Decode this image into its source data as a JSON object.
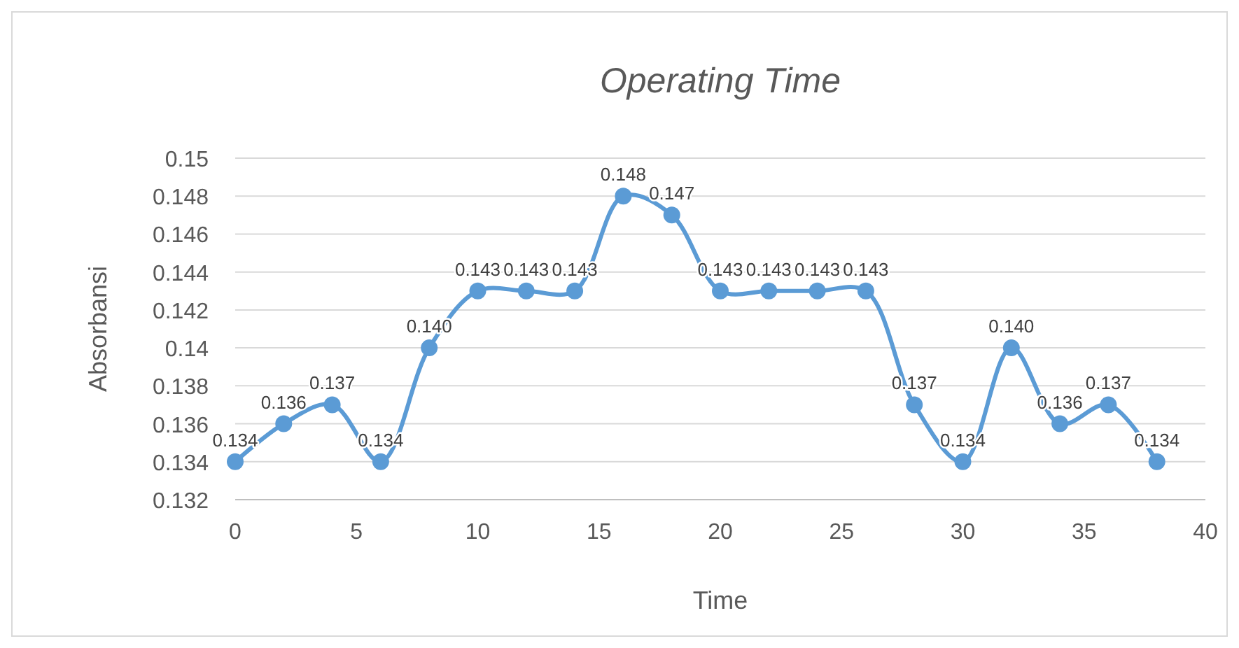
{
  "chart_data": {
    "type": "line",
    "title": "Operating Time",
    "xlabel": "Time",
    "ylabel": "Absorbansi",
    "x": [
      0,
      2,
      4,
      6,
      8,
      10,
      12,
      14,
      16,
      18,
      20,
      22,
      24,
      26,
      28,
      30,
      32,
      34,
      36,
      38
    ],
    "series": [
      {
        "color": "#5b9bd5",
        "values": [
          0.134,
          0.136,
          0.137,
          0.134,
          0.14,
          0.143,
          0.143,
          0.143,
          0.148,
          0.147,
          0.143,
          0.143,
          0.143,
          0.143,
          0.137,
          0.134,
          0.14,
          0.136,
          0.137,
          0.134
        ],
        "value_labels": [
          "0.134",
          "0.136",
          "0.137",
          "0.134",
          "0.140",
          "0.143",
          "0.143",
          "0.143",
          "0.148",
          "0.147",
          "0.143",
          "0.143",
          "0.143",
          "0.143",
          "0.137",
          "0.134",
          "0.140",
          "0.136",
          "0.137",
          "0.134"
        ]
      }
    ],
    "xlim": [
      0,
      40
    ],
    "xticks": [
      0,
      5,
      10,
      15,
      20,
      25,
      30,
      35,
      40
    ],
    "ylim": [
      0.132,
      0.15
    ],
    "yticks": [
      0.132,
      0.134,
      0.136,
      0.138,
      0.14,
      0.142,
      0.144,
      0.146,
      0.148,
      0.15
    ],
    "grid": "y",
    "marker": "circle",
    "line_style": "solid"
  }
}
